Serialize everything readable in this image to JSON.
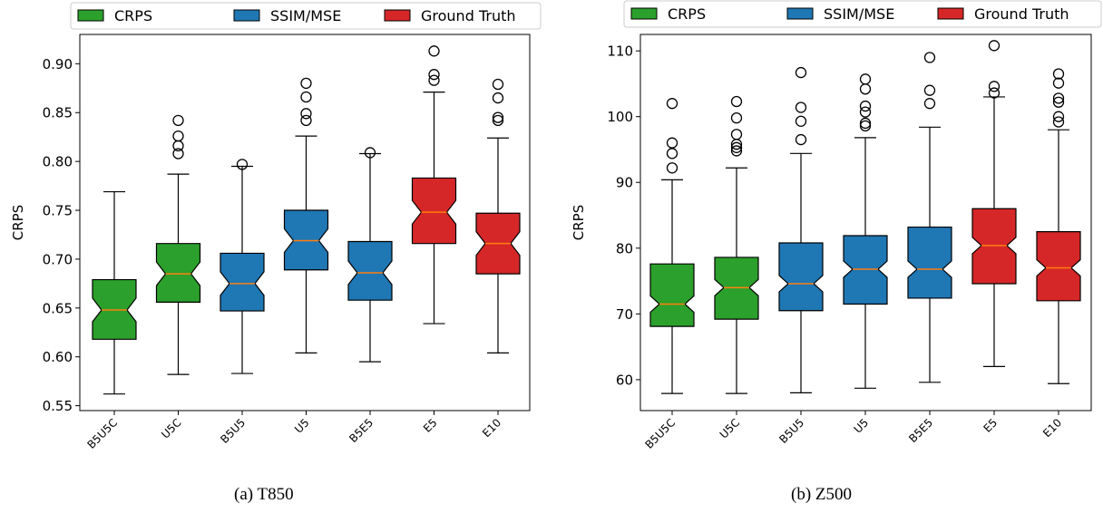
{
  "legend": [
    {
      "label": "CRPS",
      "color": "#2ca02c"
    },
    {
      "label": "SSIM/MSE",
      "color": "#1f77b4"
    },
    {
      "label": "Ground Truth",
      "color": "#d62728"
    }
  ],
  "chart_data": [
    {
      "type": "boxplot",
      "caption": "(a) T850",
      "ylabel": "CRPS",
      "xlabel": "",
      "ylim": [
        0.545,
        0.93
      ],
      "yticks": [
        "0.55",
        "0.60",
        "0.65",
        "0.70",
        "0.75",
        "0.80",
        "0.85",
        "0.90"
      ],
      "notched": true,
      "legend_position": "top",
      "categories": [
        "B5U5C",
        "U5C",
        "B5U5",
        "U5",
        "B5E5",
        "E5",
        "E10"
      ],
      "groups": [
        "CRPS",
        "CRPS",
        "SSIM/MSE",
        "SSIM/MSE",
        "SSIM/MSE",
        "Ground Truth",
        "Ground Truth"
      ],
      "boxes": [
        {
          "whisker_low": 0.562,
          "q1": 0.618,
          "median": 0.648,
          "q3": 0.679,
          "whisker_high": 0.769,
          "outliers": []
        },
        {
          "whisker_low": 0.582,
          "q1": 0.656,
          "median": 0.685,
          "q3": 0.716,
          "whisker_high": 0.787,
          "outliers": [
            0.808,
            0.816,
            0.826,
            0.842
          ]
        },
        {
          "whisker_low": 0.583,
          "q1": 0.647,
          "median": 0.675,
          "q3": 0.706,
          "whisker_high": 0.795,
          "outliers": [
            0.797
          ]
        },
        {
          "whisker_low": 0.604,
          "q1": 0.689,
          "median": 0.719,
          "q3": 0.75,
          "whisker_high": 0.826,
          "outliers": [
            0.842,
            0.849,
            0.866,
            0.88
          ]
        },
        {
          "whisker_low": 0.595,
          "q1": 0.658,
          "median": 0.686,
          "q3": 0.718,
          "whisker_high": 0.808,
          "outliers": [
            0.809
          ]
        },
        {
          "whisker_low": 0.634,
          "q1": 0.716,
          "median": 0.748,
          "q3": 0.783,
          "whisker_high": 0.871,
          "outliers": [
            0.883,
            0.889,
            0.913
          ]
        },
        {
          "whisker_low": 0.604,
          "q1": 0.685,
          "median": 0.716,
          "q3": 0.747,
          "whisker_high": 0.824,
          "outliers": [
            0.842,
            0.845,
            0.865,
            0.879
          ]
        }
      ]
    },
    {
      "type": "boxplot",
      "caption": "(b) Z500",
      "ylabel": "CRPS",
      "xlabel": "",
      "ylim": [
        55.3,
        112.5
      ],
      "yticks": [
        "60",
        "70",
        "80",
        "90",
        "100",
        "110"
      ],
      "notched": true,
      "legend_position": "top",
      "categories": [
        "B5U5C",
        "U5C",
        "B5U5",
        "U5",
        "B5E5",
        "E5",
        "E10"
      ],
      "groups": [
        "CRPS",
        "CRPS",
        "SSIM/MSE",
        "SSIM/MSE",
        "SSIM/MSE",
        "Ground Truth",
        "Ground Truth"
      ],
      "boxes": [
        {
          "whisker_low": 57.9,
          "q1": 68.1,
          "median": 71.5,
          "q3": 77.6,
          "whisker_high": 90.4,
          "outliers": [
            92.2,
            94.4,
            96.0,
            102.0
          ]
        },
        {
          "whisker_low": 57.9,
          "q1": 69.2,
          "median": 74.0,
          "q3": 78.6,
          "whisker_high": 92.2,
          "outliers": [
            94.8,
            95.3,
            95.8,
            97.3,
            99.8,
            102.3
          ]
        },
        {
          "whisker_low": 58.0,
          "q1": 70.5,
          "median": 74.6,
          "q3": 80.8,
          "whisker_high": 94.4,
          "outliers": [
            96.5,
            99.3,
            101.4,
            106.7
          ]
        },
        {
          "whisker_low": 58.7,
          "q1": 71.5,
          "median": 76.8,
          "q3": 81.9,
          "whisker_high": 96.8,
          "outliers": [
            98.6,
            99.0,
            100.7,
            101.6,
            104.2,
            105.7
          ]
        },
        {
          "whisker_low": 59.6,
          "q1": 72.4,
          "median": 76.8,
          "q3": 83.2,
          "whisker_high": 98.4,
          "outliers": [
            102.0,
            104.0,
            109.0
          ]
        },
        {
          "whisker_low": 62.0,
          "q1": 74.6,
          "median": 80.4,
          "q3": 86.0,
          "whisker_high": 103.0,
          "outliers": [
            103.6,
            104.6,
            110.8
          ]
        },
        {
          "whisker_low": 59.4,
          "q1": 72.0,
          "median": 77.0,
          "q3": 82.5,
          "whisker_high": 98.0,
          "outliers": [
            99.2,
            100.0,
            102.2,
            102.8,
            105.1,
            106.5
          ]
        }
      ]
    }
  ]
}
